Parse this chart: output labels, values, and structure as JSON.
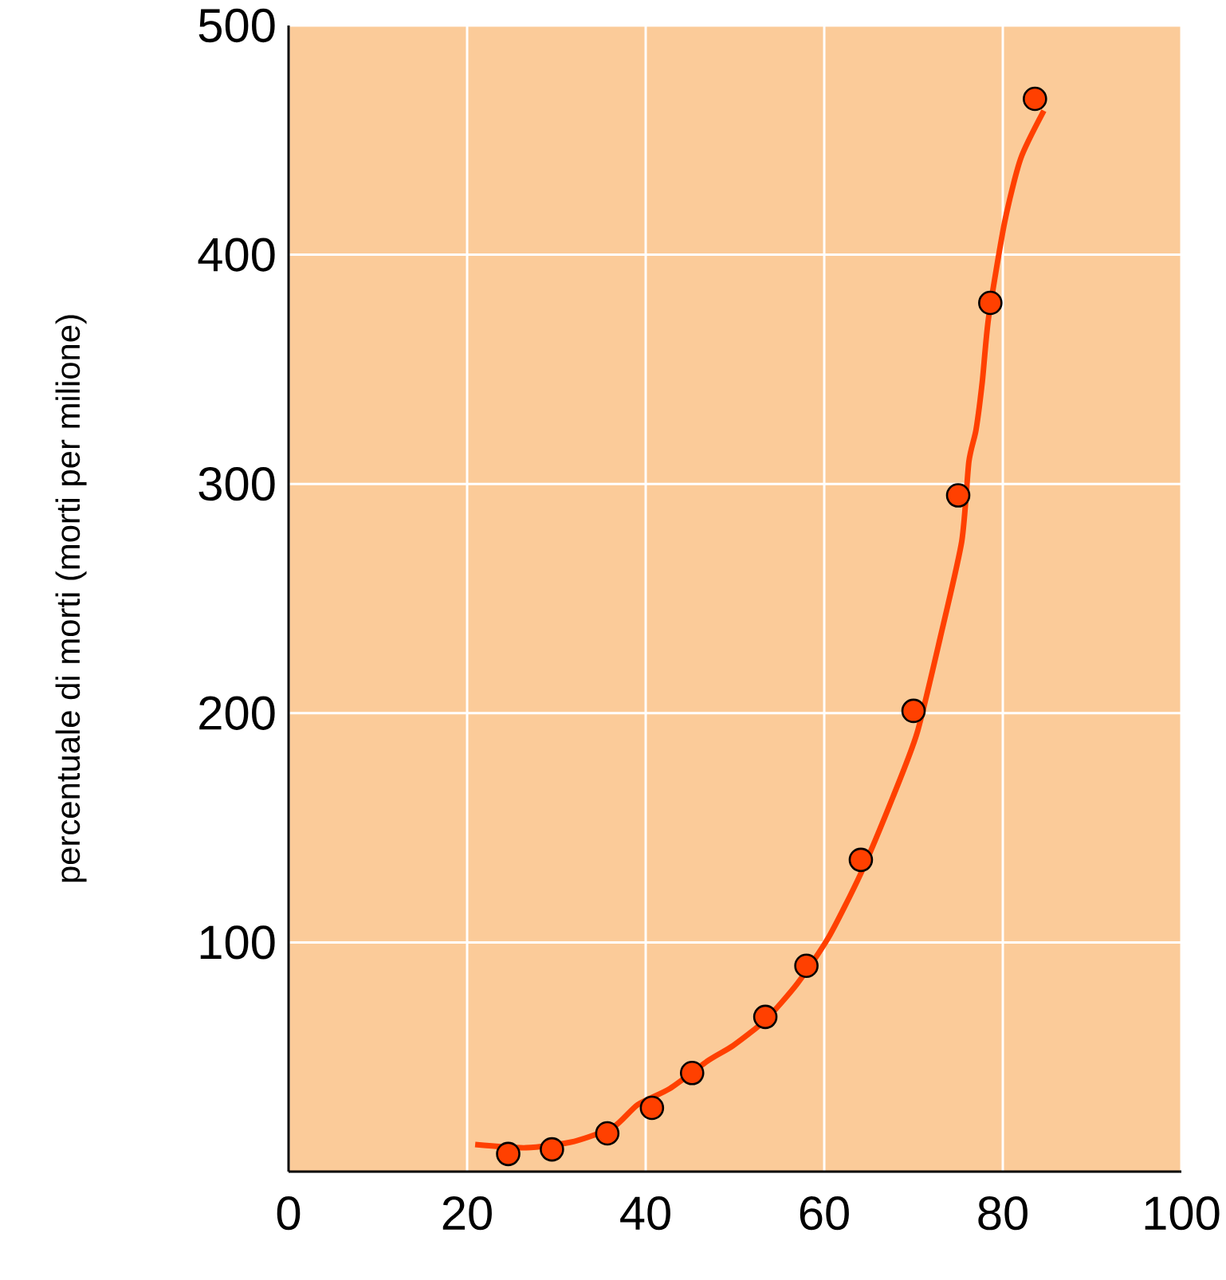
{
  "chart_data": {
    "type": "scatter",
    "ylabel": "percentuale di morti (morti per milione)",
    "xlim": [
      0,
      100
    ],
    "ylim": [
      0,
      500
    ],
    "xticks": [
      0,
      20,
      40,
      60,
      80,
      100
    ],
    "yticks": [
      100,
      200,
      300,
      400,
      500
    ],
    "grid": true,
    "series": [
      {
        "type": "line",
        "color": "#ff4000",
        "marker": "none",
        "line_style": "solid",
        "x": [
          20.9,
          26.6,
          32.0,
          36.4,
          39.1,
          42.7,
          47.1,
          49.8,
          53.4,
          57.0,
          60.5,
          64.1,
          67.7,
          70.4,
          73.0,
          75.4,
          76.2,
          77.0,
          77.7,
          78.4,
          80.2,
          82.0,
          84.6
        ],
        "values": [
          11.8,
          10.4,
          13.2,
          19.5,
          29.2,
          36.2,
          48.7,
          55.0,
          66.1,
          82.1,
          102.3,
          130.1,
          163.5,
          191.4,
          233.1,
          274.9,
          309.7,
          323.6,
          344.5,
          372.3,
          414.1,
          441.9,
          462.8
        ]
      },
      {
        "color": "#ff4000",
        "marker": "circle",
        "x": [
          24.6,
          29.5,
          35.7,
          40.7,
          45.2,
          53.4,
          58.0,
          64.1,
          70.0,
          75.0,
          78.6,
          83.6
        ],
        "values": [
          7.7,
          9.7,
          16.7,
          27.8,
          43,
          67.5,
          89.8,
          136,
          201,
          295,
          379,
          468
        ]
      }
    ]
  }
}
